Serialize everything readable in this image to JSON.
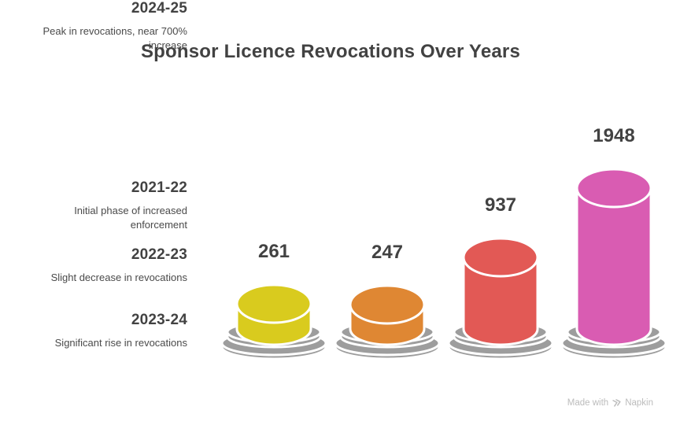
{
  "title": "Sponsor Licence Revocations Over Years",
  "timeline": {
    "entries": [
      {
        "year": "2021-22",
        "description": "Initial phase of increased enforcement"
      },
      {
        "year": "2022-23",
        "description": "Slight decrease in revocations"
      },
      {
        "year": "2023-24",
        "description": "Significant rise in revocations"
      },
      {
        "year": "2024-25",
        "description": "Peak in revocations, near 700% increase"
      }
    ]
  },
  "chart_data": {
    "type": "bar",
    "style": "3d-cylinder-pictogram",
    "title": "Sponsor Licence Revocations Over Years",
    "categories": [
      "2021-22",
      "2022-23",
      "2023-24",
      "2024-25"
    ],
    "values": [
      261,
      247,
      937,
      1948
    ],
    "value_labels": [
      "261",
      "247",
      "937",
      "1948"
    ],
    "bar_colors": [
      "#d9cb1e",
      "#df8733",
      "#e25955",
      "#d95cb2"
    ],
    "pedestal_color": "#9d9d9d",
    "outline_color": "#ffffff",
    "label_color": "#424242",
    "legend": false,
    "axes": false,
    "grid": false
  },
  "footer": {
    "made_with": "Made with",
    "brand": "Napkin",
    "icon": "napkin-logo-icon"
  },
  "colors": {
    "background": "#ffffff",
    "title_text": "#424242",
    "body_text": "#4a4a4a",
    "muted_text": "#bcbcbc"
  }
}
